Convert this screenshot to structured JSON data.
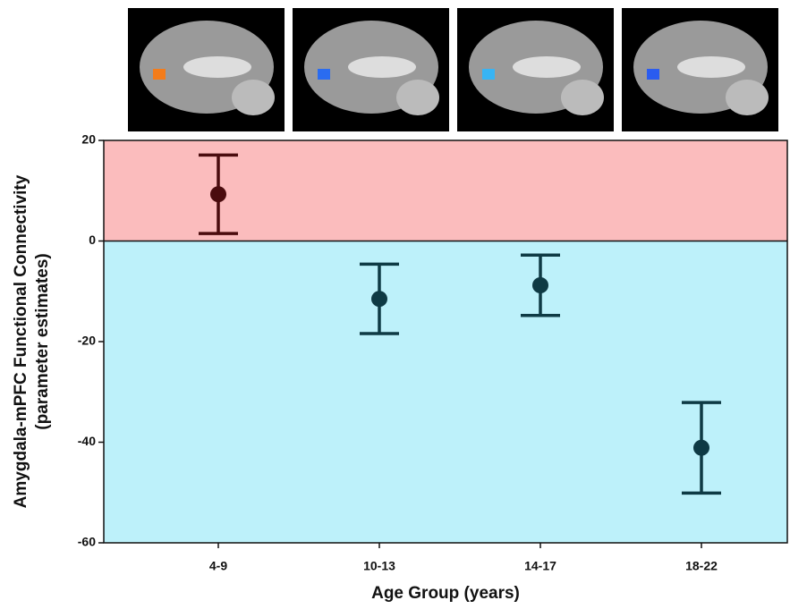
{
  "chart_data": {
    "type": "errorbar",
    "y_label": [
      "Amygdala-mPFC Functional Connectivity",
      "(parameter estimates)"
    ],
    "x_label": "Age Group (years)",
    "categories": [
      "4-9",
      "10-13",
      "14-17",
      "18-22"
    ],
    "values": [
      9.3,
      -11.5,
      -8.8,
      -41.1
    ],
    "errors": [
      7.8,
      6.9,
      6.0,
      9.0
    ],
    "colors": [
      "#4a0c0e",
      "#0e3a44",
      "#0e3a44",
      "#0e3a44"
    ],
    "positive_color": "#fbbcbd",
    "negative_color": "#bdf1fa",
    "ylim": [
      -60,
      20
    ],
    "yticks": [
      20,
      0,
      -20,
      -40,
      -60
    ]
  }
}
